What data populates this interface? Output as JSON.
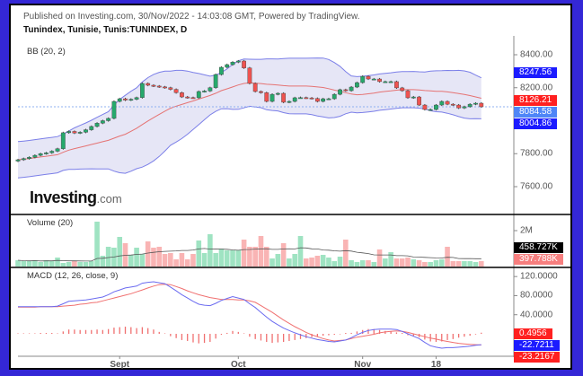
{
  "header": {
    "published": "Published on Investing.com, 30/Nov/2022 - 14:03:08 GMT, Powered by TradingView.",
    "symbol": "Tunindex, Tunisie, Tunis:TUNINDEX, D"
  },
  "logo": {
    "text": "Investing",
    ".com": ".com"
  },
  "colors": {
    "up": "#26a96c",
    "down": "#ef5350",
    "band": "#7b7fe8",
    "band_fill": "#e6e6f6",
    "basis": "#e57373",
    "vol_up": "#9fe3c2",
    "vol_down": "#f9b4b4",
    "macd": "#6b6bf0",
    "signal": "#f07070",
    "hist": "#f07070",
    "frame": "#3427d6"
  },
  "chart_data": [
    {
      "type": "candlestick",
      "label": "BB (20, 2)",
      "ylim": [
        7520,
        8460
      ],
      "y_ticks": [
        "8400.00",
        "8200.00",
        "7800.00",
        "7600.00"
      ],
      "x_ticks": [
        {
          "label": "Sept",
          "index": 18
        },
        {
          "label": "Oct",
          "index": 39
        },
        {
          "label": "Nov",
          "index": 61
        },
        {
          "label": "18",
          "index": 74
        }
      ],
      "first_open": 7755,
      "close": [
        7763,
        7770,
        7778,
        7790,
        7800,
        7805,
        7815,
        7830,
        7927,
        7935,
        7925,
        7930,
        7945,
        7965,
        7985,
        8000,
        8014,
        8117,
        8133,
        8125,
        8130,
        8140,
        8226,
        8215,
        8210,
        8205,
        8200,
        8190,
        8170,
        8144,
        8140,
        8139,
        8177,
        8180,
        8200,
        8280,
        8324,
        8340,
        8355,
        8362,
        8320,
        8226,
        8177,
        8170,
        8117,
        8160,
        8166,
        8112,
        8117,
        8139,
        8140,
        8138,
        8135,
        8117,
        8133,
        8133,
        8160,
        8188,
        8182,
        8204,
        8231,
        8269,
        8253,
        8253,
        8237,
        8237,
        8237,
        8199,
        8182,
        8139,
        8144,
        8095,
        8068,
        8068,
        8095,
        8117,
        8100,
        8095,
        8077,
        8085,
        8100,
        8106,
        8084.58
      ],
      "tags": [
        {
          "value": "8247.56",
          "color": "#1b1bff"
        },
        {
          "value": "8126.21",
          "color": "#ff2020"
        },
        {
          "value": "8084.58",
          "color": "#4f86f7"
        },
        {
          "value": "8004.86",
          "color": "#1b1bff"
        }
      ]
    },
    {
      "type": "bar",
      "label": "Volume (20)",
      "unit": "K",
      "y_ticks": [
        "2M"
      ],
      "values": [
        350,
        300,
        300,
        350,
        250,
        350,
        320,
        500,
        200,
        250,
        300,
        250,
        250,
        300,
        2500,
        600,
        1100,
        1050,
        1650,
        1300,
        650,
        1050,
        700,
        1400,
        1050,
        1100,
        700,
        750,
        400,
        750,
        400,
        700,
        1450,
        750,
        1800,
        750,
        1000,
        900,
        900,
        900,
        1500,
        1100,
        1100,
        1700,
        1100,
        450,
        700,
        1300,
        450,
        700,
        1700,
        450,
        500,
        600,
        650,
        500,
        300,
        550,
        1500,
        350,
        250,
        350,
        350,
        250,
        950,
        450,
        800,
        450,
        450,
        500,
        400,
        350,
        250,
        250,
        350,
        400,
        1100,
        300,
        300,
        300,
        300,
        250,
        300
      ],
      "tags": [
        {
          "value": "458.727K",
          "color": "#000000"
        },
        {
          "value": "397.788K",
          "color": "#f77f7f"
        }
      ]
    },
    {
      "type": "line",
      "label": "MACD (12, 26, close, 9)",
      "y_ticks": [
        "120.0000",
        "80.0000",
        "40.0000"
      ],
      "macd": [
        57,
        57,
        57,
        57,
        57,
        57,
        57,
        58,
        63,
        68,
        69,
        70,
        71,
        73,
        75,
        77,
        82,
        88,
        92,
        96,
        98,
        100,
        106,
        108,
        109,
        107,
        105,
        98,
        90,
        82,
        75,
        68,
        62,
        60,
        59,
        64,
        70,
        74,
        78,
        75,
        72,
        63,
        55,
        45,
        35,
        26,
        19,
        12,
        7,
        2,
        -2,
        -6,
        -9,
        -12,
        -14,
        -16,
        -17,
        -15,
        -13,
        -8,
        -2,
        3,
        7,
        9,
        10,
        10,
        10,
        9,
        5,
        0,
        -5,
        -10,
        -18,
        -25,
        -28,
        -30,
        -29,
        -29,
        -28,
        -27,
        -26,
        -24,
        -22.72
      ],
      "signal": [
        56,
        56,
        56,
        56,
        57,
        57,
        57,
        57,
        58,
        59,
        60,
        62,
        63,
        65,
        66,
        69,
        72,
        75,
        78,
        81,
        84,
        88,
        92,
        96,
        100,
        103,
        104,
        103,
        99,
        95,
        90,
        86,
        82,
        79,
        76,
        74,
        72,
        72,
        72,
        71,
        71,
        69,
        66,
        59,
        52,
        45,
        37,
        29,
        22,
        15,
        9,
        3,
        -2,
        -6,
        -10,
        -13,
        -15,
        -14,
        -13,
        -10,
        -7,
        -5,
        -3,
        -1,
        2,
        4,
        5,
        6,
        5,
        3,
        0,
        -3,
        -6,
        -9,
        -11,
        -14,
        -16,
        -18,
        -20,
        -21,
        -22,
        -22.7,
        -23.22
      ],
      "tags": [
        {
          "value": "0.4956",
          "color": "#ff2020"
        },
        {
          "value": "-22.7211",
          "color": "#1b1bff"
        },
        {
          "value": "-23.2167",
          "color": "#ff2020"
        }
      ]
    }
  ]
}
